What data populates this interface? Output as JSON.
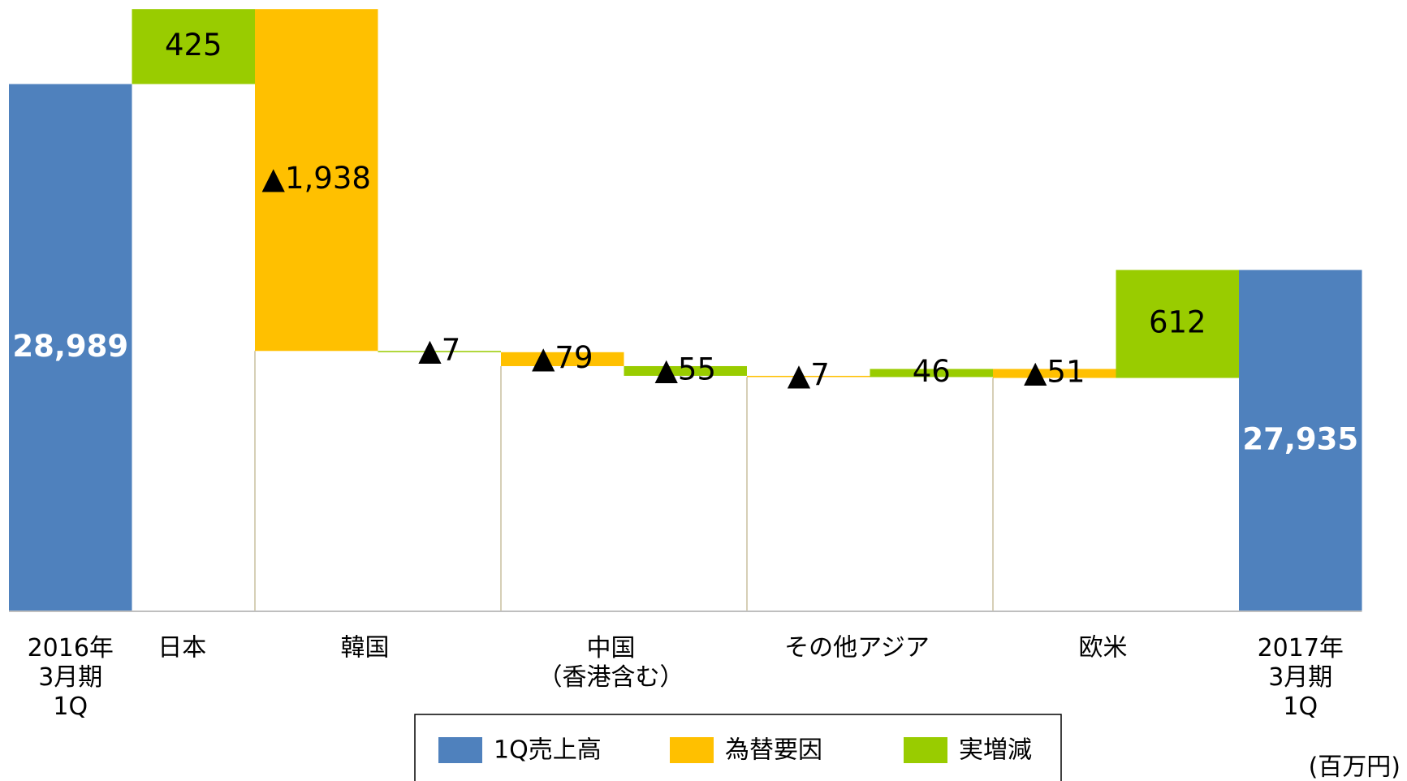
{
  "chart_data": {
    "type": "waterfall",
    "categories": [
      "2016年\n3月期\n1Q",
      "日本",
      "韓国",
      null,
      "中国\n（香港含む）",
      null,
      "その他アジア",
      null,
      "欧米",
      null,
      "2017年\n3月期\n1Q"
    ],
    "series": [
      {
        "name": "1Q売上高",
        "color": "#4f81bd",
        "values": [
          28989,
          null,
          null,
          null,
          null,
          null,
          null,
          null,
          null,
          null,
          27935
        ],
        "value_labels": [
          "28,989",
          null,
          null,
          null,
          null,
          null,
          null,
          null,
          null,
          null,
          "27,935"
        ]
      },
      {
        "name": "為替要因",
        "color": "#ffc000",
        "values": [
          null,
          null,
          -1938,
          null,
          -79,
          null,
          -7,
          null,
          -51,
          null,
          null
        ],
        "value_labels": [
          null,
          null,
          "▲1,938",
          null,
          "▲79",
          null,
          "▲7",
          null,
          "▲51",
          null,
          null
        ]
      },
      {
        "name": "実増減",
        "color": "#99cc00",
        "values": [
          null,
          425,
          null,
          -7,
          null,
          -55,
          null,
          46,
          null,
          612,
          null
        ],
        "value_labels": [
          null,
          "425",
          null,
          "▲7",
          null,
          "▲55",
          null,
          "46",
          null,
          "612",
          null
        ]
      }
    ],
    "ylim": [
      26000,
      29500
    ],
    "unit_label": "(百万円)"
  }
}
